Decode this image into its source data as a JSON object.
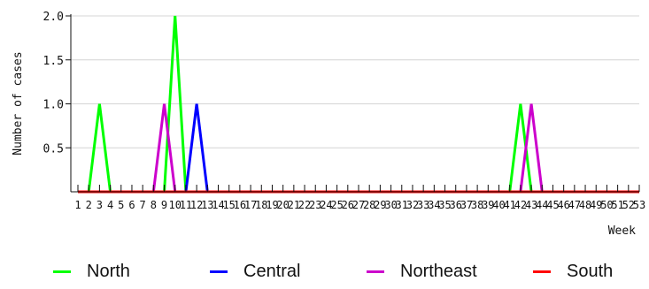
{
  "chart_data": {
    "type": "line",
    "ylabel": "Number of cases",
    "xlabel": "Week",
    "ylim": [
      0,
      2.0
    ],
    "y_ticks": [
      "2.0",
      "1.5",
      "1.0",
      "0.5"
    ],
    "x_tick_labels": [
      "1",
      "2",
      "3",
      "4",
      "5",
      "6",
      "7",
      "8",
      "9",
      "10",
      "11",
      "12",
      "13",
      "14",
      "15",
      "16",
      "17",
      "18",
      "19",
      "20",
      "21",
      "22",
      "23",
      "24",
      "25",
      "26",
      "27",
      "28",
      "29",
      "30",
      "31",
      "32",
      "33",
      "34",
      "35",
      "36",
      "37",
      "38",
      "39",
      "40",
      "41",
      "42",
      "43",
      "44",
      "45",
      "46",
      "47",
      "48",
      "49",
      "50",
      "51",
      "52",
      "53"
    ],
    "x": [
      1,
      2,
      3,
      4,
      5,
      6,
      7,
      8,
      9,
      10,
      11,
      12,
      13,
      14,
      15,
      16,
      17,
      18,
      19,
      20,
      21,
      22,
      23,
      24,
      25,
      26,
      27,
      28,
      29,
      30,
      31,
      32,
      33,
      34,
      35,
      36,
      37,
      38,
      39,
      40,
      41,
      42,
      43,
      44,
      45,
      46,
      47,
      48,
      49,
      50,
      51,
      52,
      53
    ],
    "grid": true,
    "legend_position": "bottom",
    "series": [
      {
        "name": "North",
        "color": "#00ff00",
        "values": [
          0,
          0,
          1,
          0,
          0,
          0,
          0,
          0,
          0,
          2,
          0,
          0,
          0,
          0,
          0,
          0,
          0,
          0,
          0,
          0,
          0,
          0,
          0,
          0,
          0,
          0,
          0,
          0,
          0,
          0,
          0,
          0,
          0,
          0,
          0,
          0,
          0,
          0,
          0,
          0,
          0,
          1,
          0,
          0,
          0,
          0,
          0,
          0,
          0,
          0,
          0,
          0,
          0
        ]
      },
      {
        "name": "Central",
        "color": "#0000ff",
        "values": [
          0,
          0,
          0,
          0,
          0,
          0,
          0,
          0,
          0,
          0,
          0,
          1,
          0,
          0,
          0,
          0,
          0,
          0,
          0,
          0,
          0,
          0,
          0,
          0,
          0,
          0,
          0,
          0,
          0,
          0,
          0,
          0,
          0,
          0,
          0,
          0,
          0,
          0,
          0,
          0,
          0,
          0,
          0,
          0,
          0,
          0,
          0,
          0,
          0,
          0,
          0,
          0,
          0
        ]
      },
      {
        "name": "Northeast",
        "color": "#cc00cc",
        "values": [
          0,
          0,
          0,
          0,
          0,
          0,
          0,
          0,
          1,
          0,
          0,
          0,
          0,
          0,
          0,
          0,
          0,
          0,
          0,
          0,
          0,
          0,
          0,
          0,
          0,
          0,
          0,
          0,
          0,
          0,
          0,
          0,
          0,
          0,
          0,
          0,
          0,
          0,
          0,
          0,
          0,
          0,
          1,
          0,
          0,
          0,
          0,
          0,
          0,
          0,
          0,
          0,
          0
        ]
      },
      {
        "name": "South",
        "color": "#ff0000",
        "values": [
          0,
          0,
          0,
          0,
          0,
          0,
          0,
          0,
          0,
          0,
          0,
          0,
          0,
          0,
          0,
          0,
          0,
          0,
          0,
          0,
          0,
          0,
          0,
          0,
          0,
          0,
          0,
          0,
          0,
          0,
          0,
          0,
          0,
          0,
          0,
          0,
          0,
          0,
          0,
          0,
          0,
          0,
          0,
          0,
          0,
          0,
          0,
          0,
          0,
          0,
          0,
          0,
          0
        ]
      }
    ]
  }
}
